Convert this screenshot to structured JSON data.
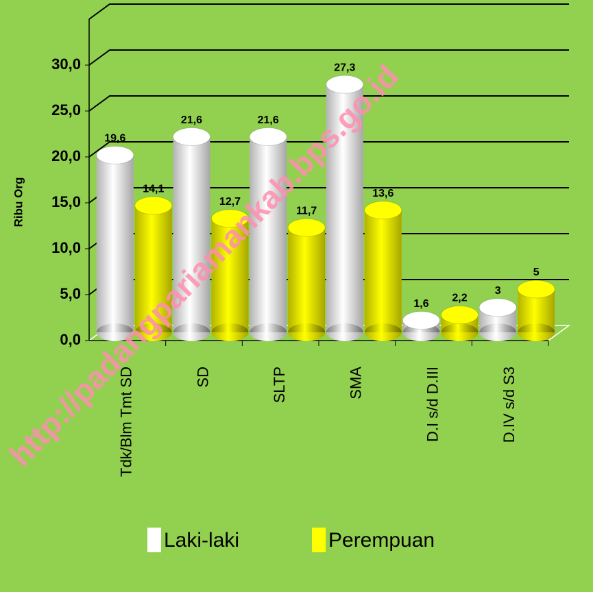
{
  "chart_data": {
    "type": "bar3d",
    "y_label": "Ribu Org",
    "watermark": "http://padangpariamankab.bps.go.id",
    "categories": [
      "Tdk/Blm Tmt SD",
      "SD",
      "SLTP",
      "SMA",
      "D.I s/d D.III",
      "D.IV s/d S3"
    ],
    "series": [
      {
        "name": "Laki-laki",
        "color": "#ffffff",
        "values": [
          19.6,
          21.6,
          21.6,
          27.3,
          1.6,
          3
        ],
        "value_labels": [
          "19,6",
          "21,6",
          "21,6",
          "27,3",
          "1,6",
          "3"
        ]
      },
      {
        "name": "Perempuan",
        "color": "#ffff00",
        "values": [
          14.1,
          12.7,
          11.7,
          13.6,
          2.2,
          5
        ],
        "value_labels": [
          "14,1",
          "12,7",
          "11,7",
          "13,6",
          "2,2",
          "5"
        ]
      }
    ],
    "ylim": [
      0,
      35
    ],
    "yticks": [
      {
        "value": 0,
        "label": "0,0"
      },
      {
        "value": 5,
        "label": "5,0"
      },
      {
        "value": 10,
        "label": "10,0"
      },
      {
        "value": 15,
        "label": "15,0"
      },
      {
        "value": 20,
        "label": "20,0"
      },
      {
        "value": 25,
        "label": "25,0"
      },
      {
        "value": 30,
        "label": "30,0"
      }
    ],
    "grid": true,
    "legend": "bottom",
    "background": "#92d050"
  }
}
